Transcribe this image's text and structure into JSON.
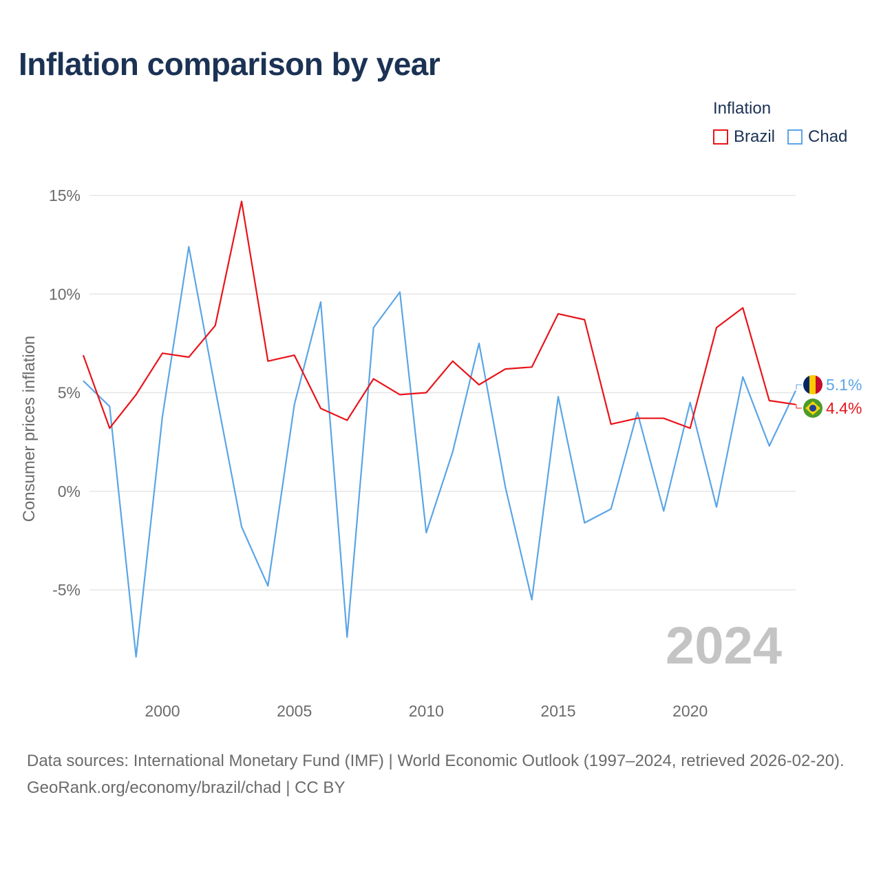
{
  "title": "Inflation comparison by year",
  "legend": {
    "title": "Inflation",
    "items": [
      {
        "label": "Brazil",
        "color": "#e8141a"
      },
      {
        "label": "Chad",
        "color": "#5aa5e6"
      }
    ]
  },
  "year_label": "2024",
  "end_labels": {
    "chad": "5.1%",
    "brazil": "4.4%"
  },
  "footer": {
    "sources": "Data sources: International Monetary Fund (IMF) | World Economic Outlook (1997–2024, retrieved 2026-02-20).",
    "credit": "GeoRank.org/economy/brazil/chad | CC BY"
  },
  "chart_data": {
    "type": "line",
    "title": "Inflation comparison by year",
    "xlabel": "",
    "ylabel": "Consumer prices inflation",
    "xlim": [
      1997,
      2024
    ],
    "ylim": [
      -10,
      15
    ],
    "yticks": [
      -5,
      0,
      5,
      10,
      15
    ],
    "ytick_labels": [
      "-5%",
      "0%",
      "5%",
      "10%",
      "15%"
    ],
    "xticks": [
      2000,
      2005,
      2010,
      2015,
      2020
    ],
    "xtick_labels": [
      "2000",
      "2005",
      "2010",
      "2015",
      "2020"
    ],
    "x": [
      1997,
      1998,
      1999,
      2000,
      2001,
      2002,
      2003,
      2004,
      2005,
      2006,
      2007,
      2008,
      2009,
      2010,
      2011,
      2012,
      2013,
      2014,
      2015,
      2016,
      2017,
      2018,
      2019,
      2020,
      2021,
      2022,
      2023,
      2024
    ],
    "series": [
      {
        "name": "Brazil",
        "color": "#e8141a",
        "values": [
          6.9,
          3.2,
          4.9,
          7.0,
          6.8,
          8.4,
          14.7,
          6.6,
          6.9,
          4.2,
          3.6,
          5.7,
          4.9,
          5.0,
          6.6,
          5.4,
          6.2,
          6.3,
          9.0,
          8.7,
          3.4,
          3.7,
          3.7,
          3.2,
          8.3,
          9.3,
          4.6,
          4.4
        ]
      },
      {
        "name": "Chad",
        "color": "#5aa5e6",
        "values": [
          5.6,
          4.3,
          -8.4,
          3.8,
          12.4,
          5.2,
          -1.8,
          -4.8,
          4.4,
          9.6,
          -7.4,
          8.3,
          10.1,
          -2.1,
          2.0,
          7.5,
          0.2,
          -5.5,
          4.8,
          -1.6,
          -0.9,
          4.0,
          -1.0,
          4.5,
          -0.8,
          5.8,
          2.3,
          5.1
        ]
      }
    ],
    "grid": true,
    "legend": "top-right"
  }
}
